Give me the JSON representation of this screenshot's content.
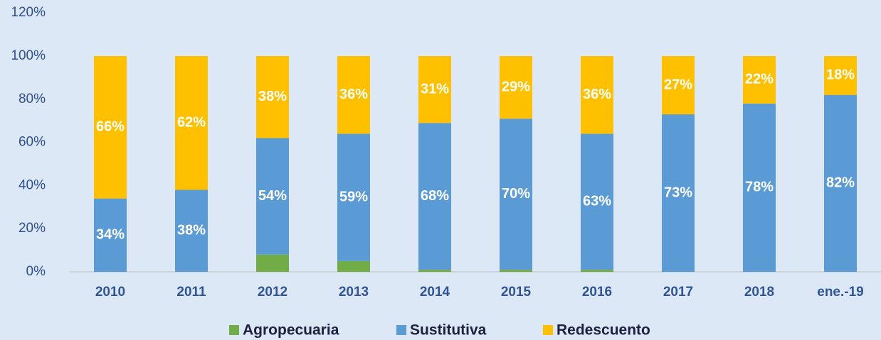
{
  "chart_data": {
    "type": "stacked_bar",
    "categories": [
      "2010",
      "2011",
      "2012",
      "2013",
      "2014",
      "2015",
      "2016",
      "2017",
      "2018",
      "ene.-19"
    ],
    "series": [
      {
        "name": "Agropecuaria",
        "color": "#70ad47",
        "values": [
          0,
          0,
          8,
          5,
          1,
          1,
          1,
          0,
          0,
          0
        ]
      },
      {
        "name": "Sustitutiva",
        "color": "#5b9bd5",
        "values": [
          34,
          38,
          54,
          59,
          68,
          70,
          63,
          73,
          78,
          82
        ],
        "value_labels": [
          "34%",
          "38%",
          "54%",
          "59%",
          "68%",
          "70%",
          "63%",
          "73%",
          "78%",
          "82%"
        ]
      },
      {
        "name": "Redescuento",
        "color": "#ffc000",
        "values": [
          66,
          62,
          38,
          36,
          31,
          29,
          36,
          27,
          22,
          18
        ],
        "value_labels": [
          "66%",
          "62%",
          "38%",
          "36%",
          "31%",
          "29%",
          "36%",
          "27%",
          "22%",
          "18%"
        ]
      }
    ],
    "ylim": [
      0,
      120
    ],
    "yticks": [
      {
        "value": 0,
        "label": "0%"
      },
      {
        "value": 20,
        "label": "20%"
      },
      {
        "value": 40,
        "label": "40%"
      },
      {
        "value": 60,
        "label": "60%"
      },
      {
        "value": 80,
        "label": "80%"
      },
      {
        "value": 100,
        "label": "100%"
      },
      {
        "value": 120,
        "label": "120%"
      }
    ],
    "legend": "bottom"
  }
}
